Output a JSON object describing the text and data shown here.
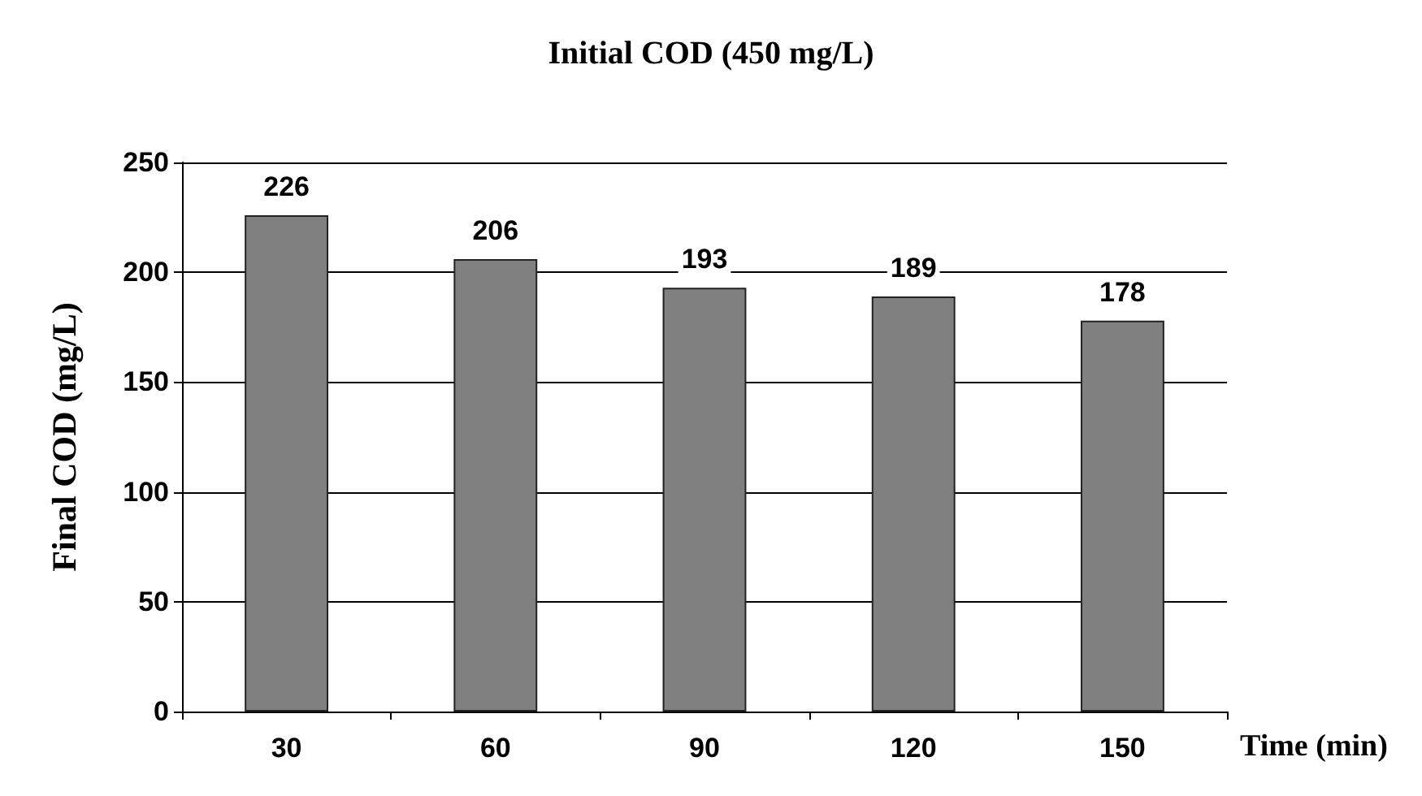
{
  "chart_data": {
    "type": "bar",
    "title": "Initial COD (450 mg/L)",
    "xlabel": "Time (min)",
    "ylabel": "Final COD (mg/L)",
    "categories": [
      "30",
      "60",
      "90",
      "120",
      "150"
    ],
    "values": [
      226,
      206,
      193,
      189,
      178
    ],
    "color": "#808080",
    "ylim": [
      0,
      250
    ],
    "yticks": [
      0,
      50,
      100,
      150,
      200,
      250
    ],
    "grid": "y",
    "data_labels": true
  }
}
